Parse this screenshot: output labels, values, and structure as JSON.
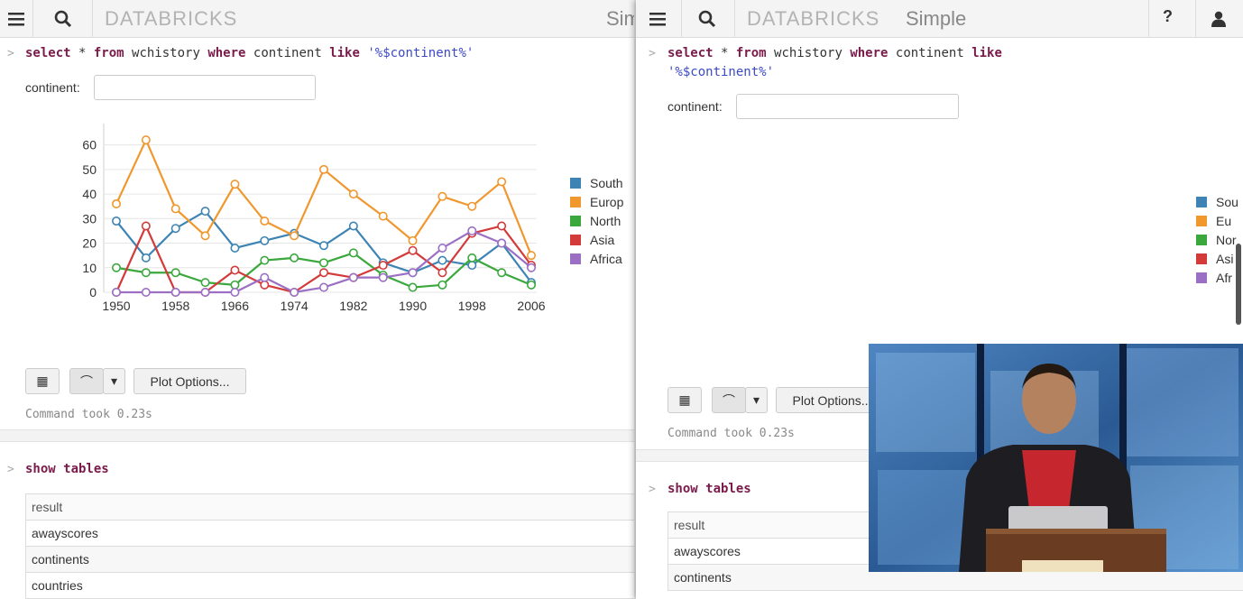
{
  "brand": "DATABRICKS",
  "notebook_name_left": "Simp",
  "notebook_name_right": "Simple",
  "help_label": "?",
  "query": {
    "prompt": ">",
    "kw_select": "select",
    "star": " * ",
    "kw_from": "from",
    "table": " wchistory ",
    "kw_where": "where",
    "col": " continent ",
    "kw_like": "like",
    "pattern": "'%$continent%'"
  },
  "param": {
    "label": "continent:",
    "value": ""
  },
  "chart_data": {
    "type": "line",
    "x": [
      1950,
      1954,
      1958,
      1962,
      1966,
      1970,
      1974,
      1978,
      1982,
      1986,
      1990,
      1994,
      1998,
      2002,
      2006
    ],
    "x_ticks": [
      "1950",
      "1958",
      "1966",
      "1974",
      "1982",
      "1990",
      "1998",
      "2006"
    ],
    "y_ticks": [
      "0",
      "10",
      "20",
      "30",
      "40",
      "50",
      "60"
    ],
    "ylim": [
      0,
      65
    ],
    "grid": true,
    "legend_position": "right",
    "series": [
      {
        "name": "South",
        "color": "#3d84b4",
        "values": [
          29,
          14,
          26,
          33,
          18,
          21,
          24,
          19,
          27,
          12,
          8,
          13,
          11,
          20,
          4
        ]
      },
      {
        "name": "Europ",
        "color": "#f0972e",
        "values": [
          36,
          62,
          34,
          23,
          44,
          29,
          23,
          50,
          40,
          31,
          21,
          39,
          35,
          45,
          15
        ]
      },
      {
        "name": "North",
        "color": "#3aa83d",
        "values": [
          10,
          8,
          8,
          4,
          3,
          13,
          14,
          12,
          16,
          7,
          2,
          3,
          14,
          8,
          3
        ]
      },
      {
        "name": "Asia",
        "color": "#d33b3b",
        "values": [
          0,
          27,
          0,
          0,
          9,
          3,
          0,
          8,
          6,
          11,
          17,
          8,
          24,
          27,
          11
        ]
      },
      {
        "name": "Africa",
        "color": "#9b6fc4",
        "values": [
          0,
          0,
          0,
          0,
          0,
          6,
          0,
          2,
          6,
          6,
          8,
          18,
          25,
          20,
          10
        ]
      }
    ],
    "legend_labels_right": [
      "Sou",
      "Eu",
      "Nor",
      "Asi",
      "Afr"
    ]
  },
  "toolbar": {
    "table_icon": "▦",
    "line_icon": "⌒",
    "caret": "▾",
    "plot_options": "Plot Options..."
  },
  "command_took": "Command took 0.23s",
  "show_tables": {
    "prompt": ">",
    "code": "show tables"
  },
  "tables": {
    "header": "result",
    "rows": [
      "awayscores",
      "continents",
      "countries"
    ]
  },
  "colors": {
    "keyword": "#7a1a4a",
    "string": "#3b49c4",
    "topbar": "#f4f4f4"
  },
  "icons": {
    "menu": "menu-icon",
    "search": "search-icon",
    "user": "user-icon",
    "help": "help-icon"
  }
}
